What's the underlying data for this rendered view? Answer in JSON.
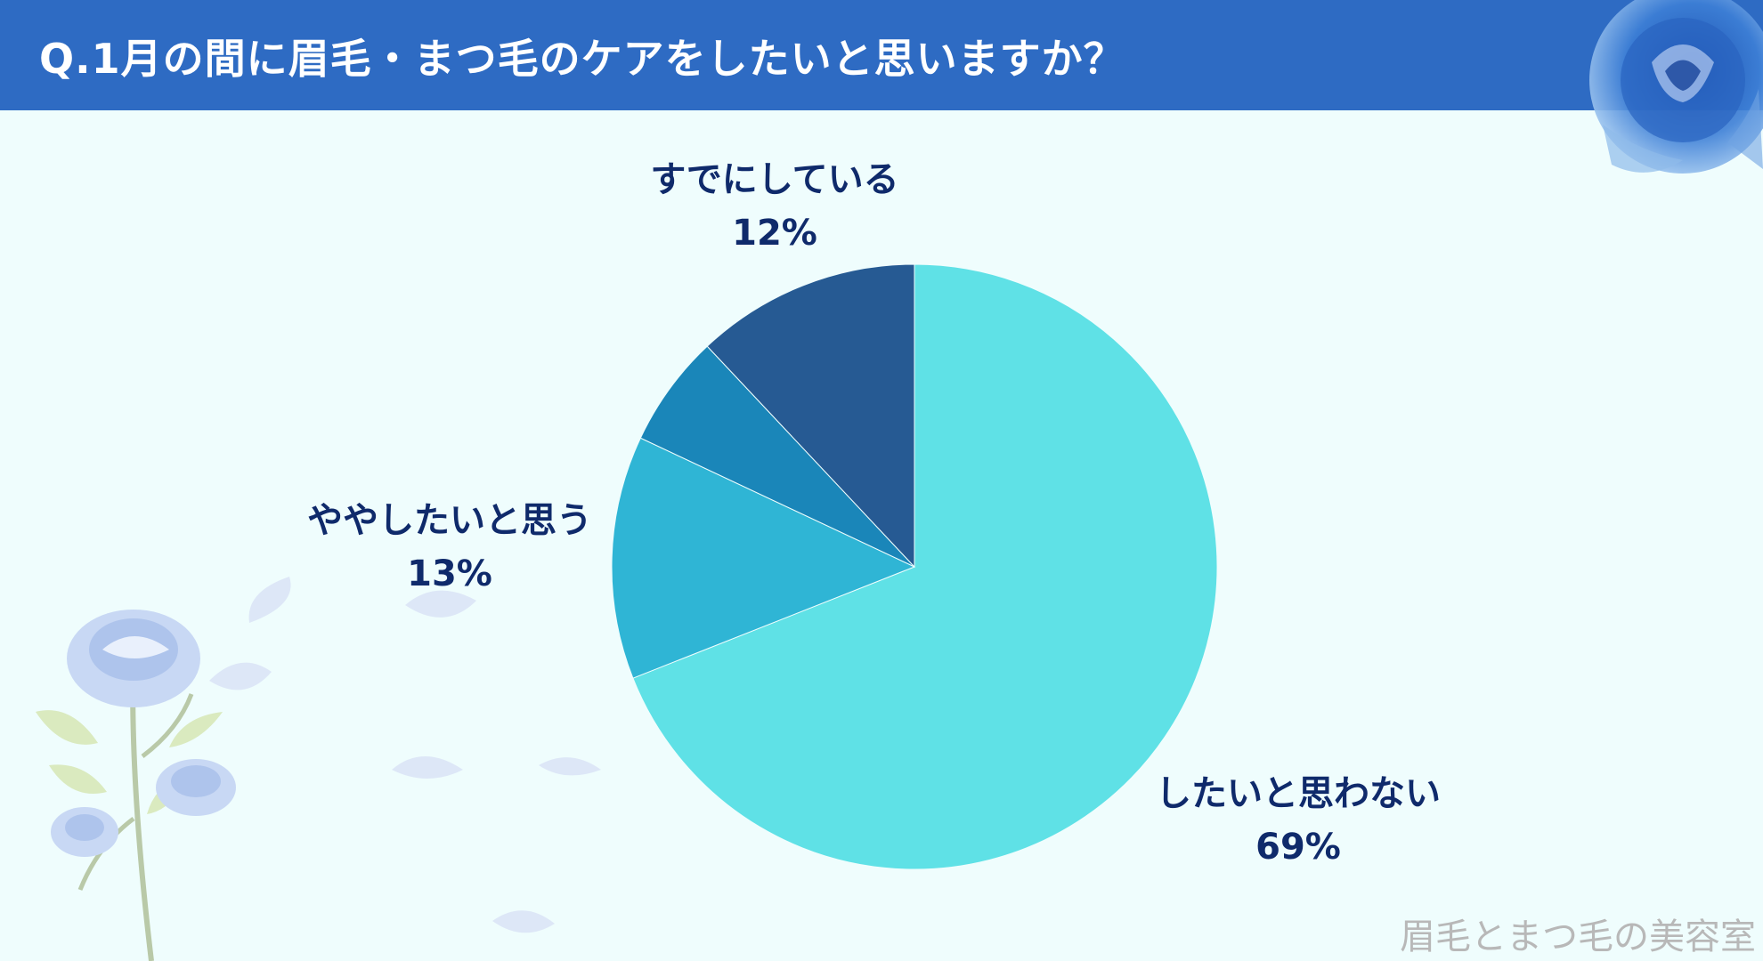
{
  "header": {
    "title": "Q.1月の間に眉毛・まつ毛のケアをしたいと思いますか？"
  },
  "chart_data": {
    "type": "pie",
    "title": "Q.1月の間に眉毛・まつ毛のケアをしたいと思いますか？",
    "slices": [
      {
        "label": "したいと思わない",
        "value": 69,
        "value_label": "69%",
        "color": "#5fe1e6"
      },
      {
        "label": "ややしたいと思う",
        "value": 13,
        "value_label": "13%",
        "color": "#2fb5d5"
      },
      {
        "label": "",
        "value": 6,
        "value_label": "",
        "color": "#1a86b9"
      },
      {
        "label": "すでにしている",
        "value": 12,
        "value_label": "12%",
        "color": "#265a93"
      }
    ]
  },
  "footer": {
    "brand": "眉毛とまつ毛の美容室"
  },
  "decor": {
    "icons": [
      "blue-rose-icon",
      "rose-branch-icon",
      "petal-icon"
    ]
  }
}
